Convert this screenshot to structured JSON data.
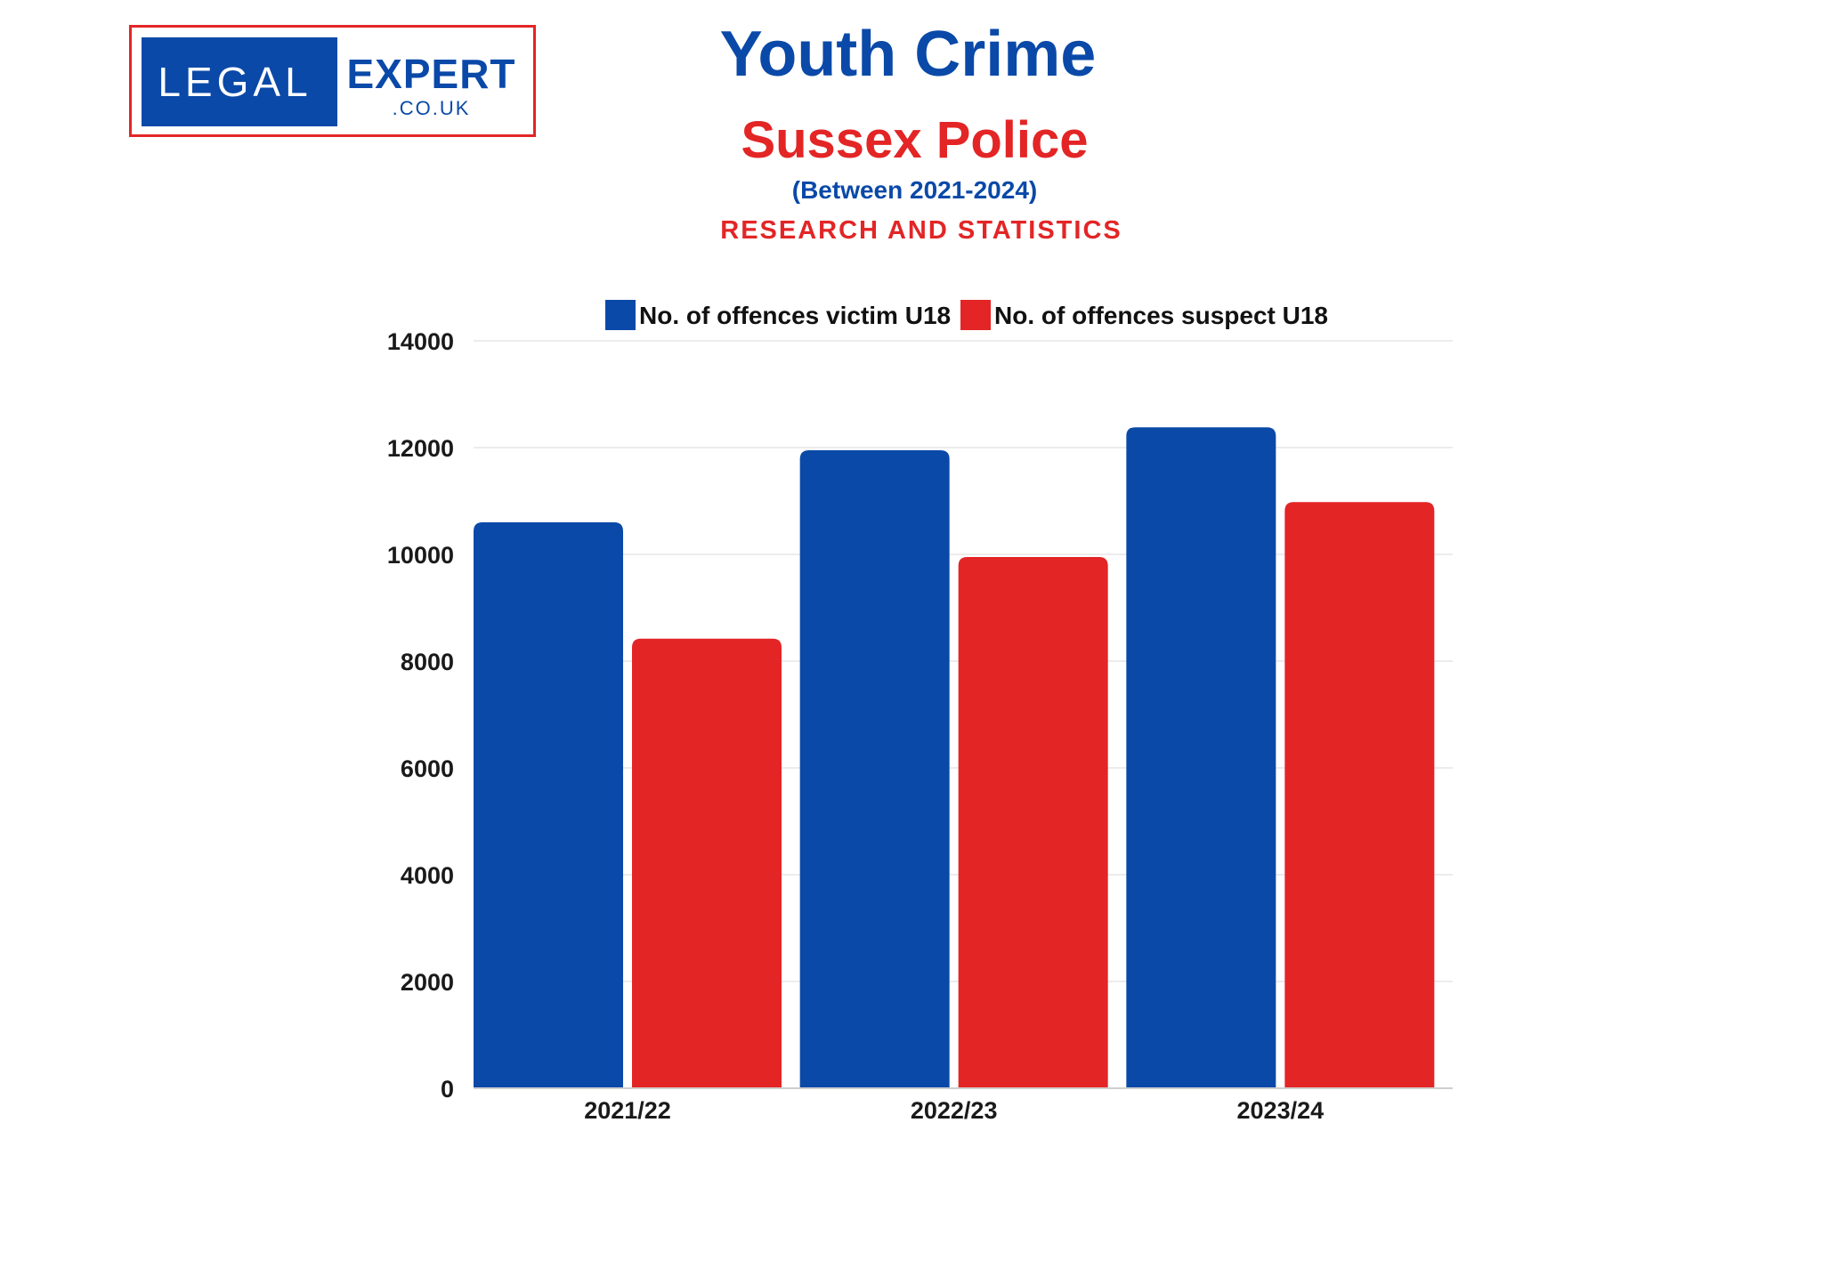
{
  "logo": {
    "word_left": "LEGAL",
    "word_right": "EXPERT",
    "domain": ".CO.UK"
  },
  "header": {
    "title": "Youth Crime",
    "subtitle": "Sussex Police",
    "period": "(Between 2021-2024)",
    "tagline": "RESEARCH AND STATISTICS"
  },
  "colors": {
    "victim": "#0a49a8",
    "suspect": "#e32526",
    "grid": "#e6e6e6"
  },
  "chart_data": {
    "type": "bar",
    "categories": [
      "2021/22",
      "2022/23",
      "2023/24"
    ],
    "series": [
      {
        "name": "No. of offences victim U18",
        "values": [
          10600,
          11950,
          12380
        ]
      },
      {
        "name": "No. of offences suspect U18",
        "values": [
          8420,
          9950,
          10980
        ]
      }
    ],
    "ylim": [
      0,
      14000
    ],
    "yticks": [
      0,
      2000,
      4000,
      6000,
      8000,
      10000,
      12000,
      14000
    ],
    "ytick_labels": [
      "0",
      "2000",
      "4000",
      "6000",
      "8000",
      "10000",
      "12000",
      "14000"
    ],
    "grid": true,
    "legend": "top"
  }
}
